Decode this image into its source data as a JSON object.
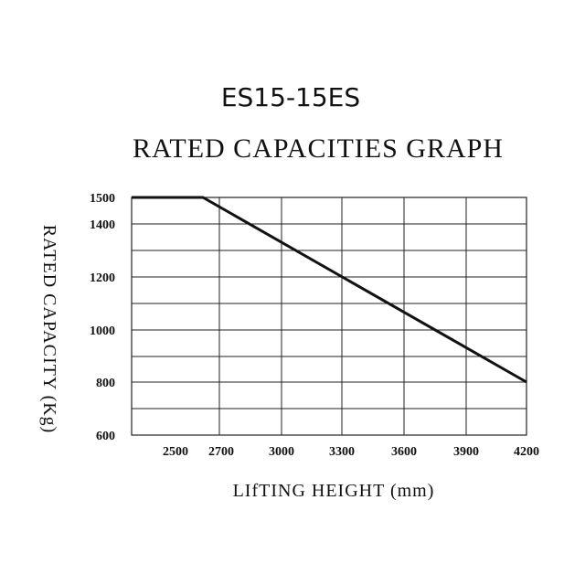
{
  "chart_data": {
    "type": "line",
    "title": "ES15-15ES",
    "subtitle": "RATED CAPACITIES GRAPH",
    "xlabel": "LIfTING HEIGHT (mm)",
    "ylabel": "RATED CAPACITY (Kg)",
    "xlim": [
      2300,
      4200
    ],
    "ylim": [
      600,
      1500
    ],
    "x_ticks": [
      2500,
      2700,
      3000,
      3300,
      3600,
      3900,
      4200
    ],
    "y_ticks": [
      600,
      800,
      1000,
      1200,
      1400,
      1500
    ],
    "grid": true,
    "series": [
      {
        "x": [
          2300,
          2620,
          4200
        ],
        "y": [
          1500,
          1500,
          800
        ]
      }
    ]
  }
}
